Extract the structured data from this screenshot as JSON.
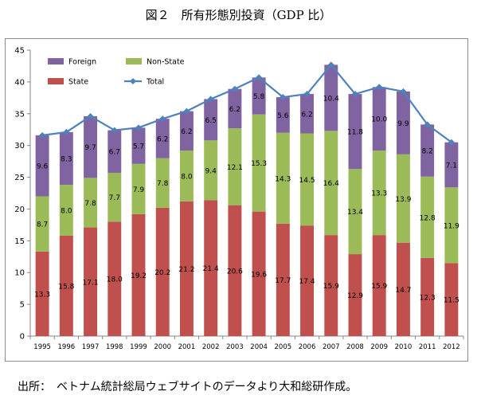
{
  "figure_title": "図２　所有形態別投資（GDP 比）",
  "source_note": "出所：　ベトナム統計総局ウェブサイトのデータより大和総研作成。",
  "chart_data": {
    "type": "bar",
    "stacked": true,
    "title": "",
    "xlabel": "",
    "ylabel": "",
    "ylim": [
      0,
      45
    ],
    "yticks": [
      0,
      5,
      10,
      15,
      20,
      25,
      30,
      35,
      40,
      45
    ],
    "grid": false,
    "legend_position": "top-left",
    "categories": [
      "1995",
      "1996",
      "1997",
      "1998",
      "1999",
      "2000",
      "2001",
      "2002",
      "2003",
      "2004",
      "2005",
      "2006",
      "2007",
      "2008",
      "2009",
      "2010",
      "2011",
      "2012"
    ],
    "series": [
      {
        "name": "State",
        "kind": "bar",
        "color": "#c0504d",
        "values": [
          13.3,
          15.8,
          17.1,
          18.0,
          19.2,
          20.2,
          21.2,
          21.4,
          20.6,
          19.6,
          17.7,
          17.4,
          15.9,
          12.9,
          15.9,
          14.7,
          12.3,
          11.5
        ],
        "labels": [
          "13.3",
          "15.8",
          "17.1",
          "18.0",
          "19.2",
          "20.2",
          "21.2",
          "21.4",
          "20.6",
          "19.6",
          "17.7",
          "17.4",
          "15.9",
          "12.9",
          "15.9",
          "14.7",
          "12.3",
          "11.5"
        ]
      },
      {
        "name": "Non-State",
        "kind": "bar",
        "color": "#9bbb59",
        "values": [
          8.7,
          8.0,
          7.8,
          7.7,
          7.9,
          7.8,
          8.0,
          9.4,
          12.1,
          15.3,
          14.3,
          14.5,
          16.4,
          13.4,
          13.3,
          13.9,
          12.8,
          11.9
        ],
        "labels": [
          "8.7",
          "8.0",
          "7.8",
          "7.7",
          "7.9",
          "7.8",
          "8.0",
          "9.4",
          "12.1",
          "15.3",
          "14.3",
          "14.5",
          "16.4",
          "13.4",
          "13.3",
          "13.9",
          "12.8",
          "11.9"
        ]
      },
      {
        "name": "Foreign",
        "kind": "bar",
        "color": "#8064a2",
        "values": [
          9.6,
          8.3,
          9.7,
          6.7,
          5.7,
          6.2,
          6.2,
          6.5,
          6.2,
          5.8,
          5.6,
          6.2,
          10.4,
          11.8,
          10.0,
          9.9,
          8.2,
          7.1
        ],
        "labels": [
          "9.6",
          "8.3",
          "9.7",
          "6.7",
          "5.7",
          "6.2",
          "6.2",
          "6.5",
          "6.2",
          "5.8",
          "5.6",
          "6.2",
          "10.4",
          "11.8",
          "10.0",
          "9.9",
          "8.2",
          "7.1"
        ]
      },
      {
        "name": "Total",
        "kind": "line",
        "color": "#4f81bd",
        "values": [
          31.6,
          32.1,
          34.6,
          32.4,
          32.8,
          34.2,
          35.4,
          37.3,
          38.9,
          40.7,
          37.6,
          38.1,
          42.7,
          38.1,
          39.2,
          38.5,
          33.3,
          30.5
        ]
      }
    ]
  }
}
